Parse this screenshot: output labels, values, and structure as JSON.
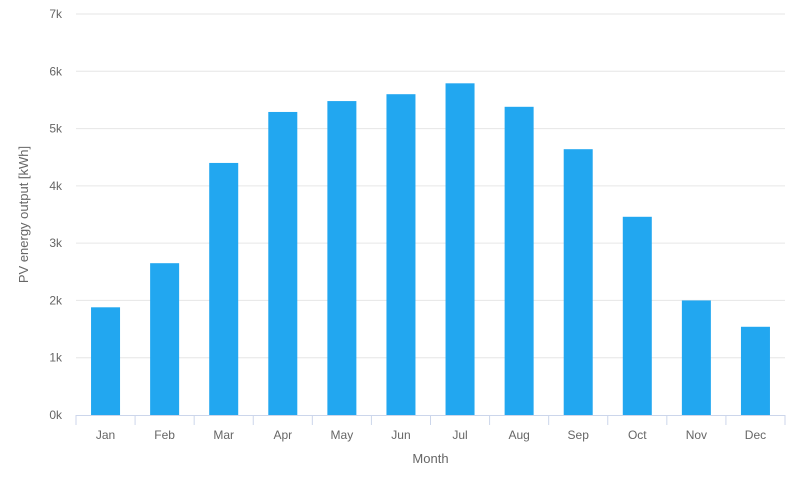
{
  "chart_data": {
    "type": "bar",
    "title": "",
    "xlabel": "Month",
    "ylabel": "PV energy output [kWh]",
    "categories": [
      "Jan",
      "Feb",
      "Mar",
      "Apr",
      "May",
      "Jun",
      "Jul",
      "Aug",
      "Sep",
      "Oct",
      "Nov",
      "Dec"
    ],
    "values": [
      1880,
      2650,
      4400,
      5290,
      5480,
      5600,
      5790,
      5380,
      4640,
      3460,
      2000,
      1540
    ],
    "ylim": [
      0,
      7000
    ],
    "yticks": [
      0,
      1000,
      2000,
      3000,
      4000,
      5000,
      6000,
      7000
    ],
    "ytick_labels": [
      "0k",
      "1k",
      "2k",
      "3k",
      "4k",
      "5k",
      "6k",
      "7k"
    ],
    "grid": true,
    "bar_color": "#22a7f0",
    "legend": "none"
  }
}
